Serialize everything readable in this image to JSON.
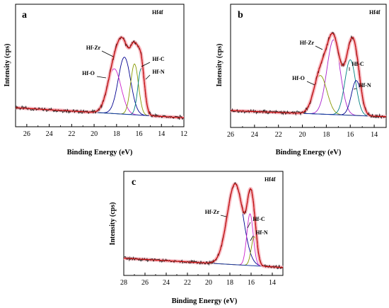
{
  "chart_data": [
    {
      "type": "line",
      "panel_label": "a",
      "header": "Hf4f",
      "xlabel": "Binding Energy (eV)",
      "ylabel": "Intensity (cps)",
      "xlim": [
        27,
        12
      ],
      "xticks": [
        26,
        24,
        22,
        20,
        18,
        16,
        14,
        12
      ],
      "ylim": [
        0,
        1
      ],
      "peaks": [
        {
          "name": "Hf-Zr",
          "center": 17.3,
          "amplitude": 0.56,
          "width": 0.55,
          "color": "#000090"
        },
        {
          "name": "Hf-O",
          "center": 18.2,
          "amplitude": 0.44,
          "width": 0.6,
          "color": "#cc22cc"
        },
        {
          "name": "Hf-C",
          "center": 16.4,
          "amplitude": 0.5,
          "width": 0.35,
          "color": "#889900"
        },
        {
          "name": "Hf-N",
          "center": 15.8,
          "amplitude": 0.46,
          "width": 0.3,
          "color": "#008080"
        }
      ],
      "envelope_peak_value": 0.84,
      "baseline_low_be": 0.04,
      "baseline_high_be": 0.14
    },
    {
      "type": "line",
      "panel_label": "b",
      "header": "Hf4f",
      "xlabel": "Binding Energy (eV)",
      "ylabel": "Intensity (cps)",
      "xlim": [
        26,
        13
      ],
      "xticks": [
        26,
        24,
        22,
        20,
        18,
        16,
        14
      ],
      "ylim": [
        0,
        1
      ],
      "peaks": [
        {
          "name": "Hf-Zr",
          "center": 17.4,
          "amplitude": 0.62,
          "width": 0.55,
          "color": "#aa22cc"
        },
        {
          "name": "Hf-O",
          "center": 18.5,
          "amplitude": 0.32,
          "width": 0.55,
          "color": "#889900"
        },
        {
          "name": "Hf-C",
          "center": 16.0,
          "amplitude": 0.46,
          "width": 0.45,
          "color": "#008080"
        },
        {
          "name": "Hf-N",
          "center": 15.5,
          "amplitude": 0.29,
          "width": 0.4,
          "color": "#000090"
        }
      ],
      "envelope_peak_value": 0.88,
      "baseline_low_be": 0.05,
      "baseline_high_be": 0.11
    },
    {
      "type": "line",
      "panel_label": "c",
      "header": "Hf4f",
      "xlabel": "Binding Energy (eV)",
      "ylabel": "Intensity (cps)",
      "xlim": [
        28,
        13
      ],
      "xticks": [
        28,
        26,
        24,
        22,
        20,
        18,
        16,
        14
      ],
      "ylim": [
        0,
        1
      ],
      "peaks": [
        {
          "name": "Hf-Zr",
          "center": 17.5,
          "amplitude": 0.78,
          "width": 0.75,
          "color": "#000090"
        },
        {
          "name": "Hf-C",
          "center": 16.1,
          "amplitude": 0.5,
          "width": 0.3,
          "color": "#cc22cc"
        },
        {
          "name": "Hf-N",
          "center": 15.7,
          "amplitude": 0.28,
          "width": 0.28,
          "color": "#889900"
        }
      ],
      "envelope_peak_value": 0.95,
      "baseline_low_be": 0.04,
      "baseline_high_be": 0.14
    }
  ],
  "colors": {
    "raw": "#333333",
    "fit": "#cc0000",
    "baseline": "#1a3aa0",
    "envelope_glow": "#f7b8c0"
  }
}
